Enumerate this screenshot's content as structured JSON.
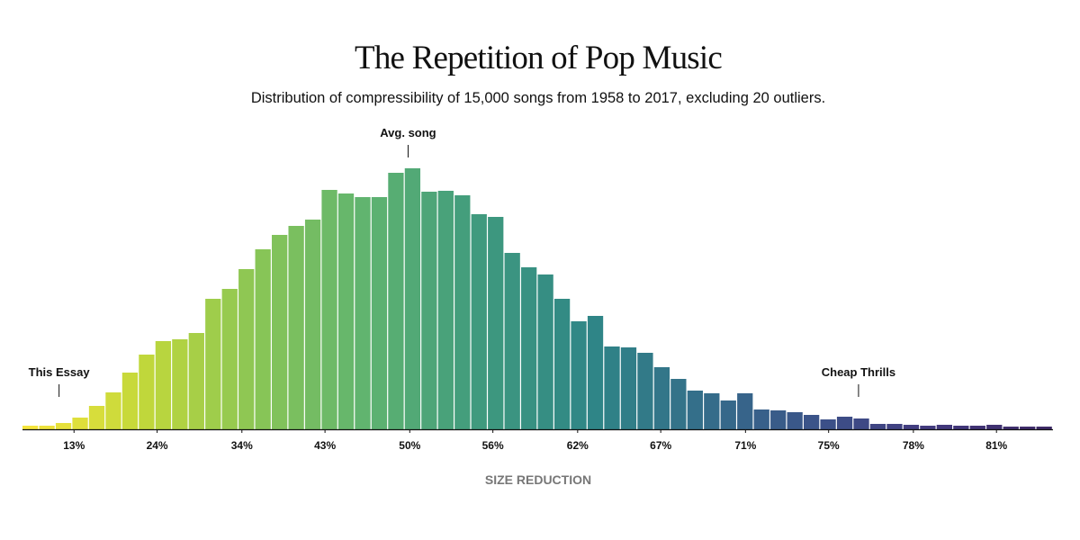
{
  "chart_data": {
    "type": "histogram",
    "title": "The Repetition of Pop Music",
    "subtitle": "Distribution of compressibility of 15,000 songs from 1958 to 2017, excluding 20 outliers.",
    "xlabel": "SIZE REDUCTION",
    "bins": [
      0,
      1,
      2,
      3,
      4,
      5,
      6,
      7,
      8,
      9,
      10,
      11,
      12,
      13,
      14,
      15,
      16,
      17,
      18,
      19,
      20,
      21,
      22,
      23,
      24,
      25,
      26,
      27,
      28,
      29,
      30,
      31,
      32,
      33,
      34,
      35,
      36,
      37,
      38,
      39,
      40,
      41,
      42,
      43,
      44,
      45,
      46,
      47,
      48,
      49,
      50,
      51,
      52,
      53,
      54,
      55,
      56,
      57,
      58,
      59,
      60,
      61,
      62
    ],
    "values": [
      4,
      4,
      7,
      13,
      26,
      41,
      63,
      83,
      98,
      100,
      107,
      145,
      156,
      178,
      200,
      216,
      226,
      233,
      266,
      262,
      258,
      258,
      285,
      290,
      264,
      265,
      260,
      239,
      236,
      196,
      180,
      172,
      145,
      120,
      126,
      92,
      91,
      85,
      69,
      56,
      43,
      40,
      32,
      40,
      22,
      21,
      19,
      16,
      11,
      14,
      12,
      6,
      6,
      5,
      4,
      5,
      4,
      4,
      5,
      3,
      3,
      3
    ],
    "xlim": [
      0,
      62
    ],
    "ylim": [
      0,
      300
    ],
    "xticks": [
      {
        "value": 3.1,
        "label": "13%"
      },
      {
        "value": 8.1,
        "label": "24%"
      },
      {
        "value": 13.2,
        "label": "34%"
      },
      {
        "value": 18.2,
        "label": "43%"
      },
      {
        "value": 23.3,
        "label": "50%"
      },
      {
        "value": 28.3,
        "label": "56%"
      },
      {
        "value": 33.4,
        "label": "62%"
      },
      {
        "value": 38.4,
        "label": "67%"
      },
      {
        "value": 43.5,
        "label": "71%"
      },
      {
        "value": 48.5,
        "label": "75%"
      },
      {
        "value": 53.6,
        "label": "78%"
      },
      {
        "value": 58.6,
        "label": "81%"
      }
    ],
    "colormap": [
      "#f5e43c",
      "#c2d83a",
      "#8ac655",
      "#5fb370",
      "#3f9a7e",
      "#2f8587",
      "#356d8a",
      "#3b5289",
      "#433a7e",
      "#3d2a66"
    ],
    "annotations": [
      {
        "text": "This Essay",
        "x": 2.2,
        "y": 30
      },
      {
        "text": "Avg. song",
        "x": 23.2,
        "y": 296
      },
      {
        "text": "Cheap Thrills",
        "x": 50.3,
        "y": 30
      }
    ]
  }
}
